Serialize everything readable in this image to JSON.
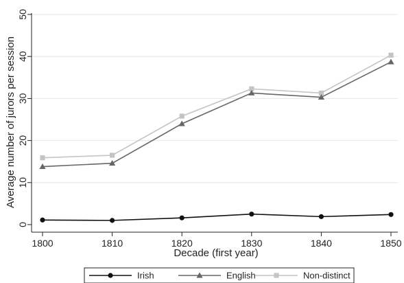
{
  "chart_data": {
    "type": "line",
    "xlabel": "Decade (first year)",
    "ylabel": "Average number of jurors per session",
    "x": [
      1800,
      1810,
      1820,
      1830,
      1840,
      1850
    ],
    "xlim": [
      1800,
      1850
    ],
    "ylim": [
      0,
      50
    ],
    "xticks": [
      "1800",
      "1810",
      "1820",
      "1830",
      "1840",
      "1850"
    ],
    "yticks": [
      "0",
      "10",
      "20",
      "30",
      "40",
      "50"
    ],
    "grid": "horizontal",
    "legend_position": "bottom",
    "series": [
      {
        "name": "Irish",
        "color": "#111111",
        "marker": "circle",
        "values": [
          1.1,
          1.0,
          1.6,
          2.5,
          1.9,
          2.4
        ]
      },
      {
        "name": "English",
        "color": "#666666",
        "marker": "triangle",
        "values": [
          13.8,
          14.6,
          24.0,
          31.3,
          30.3,
          38.7
        ]
      },
      {
        "name": "Non-distinct",
        "color": "#c4c4c4",
        "marker": "square",
        "values": [
          15.9,
          16.5,
          25.8,
          32.3,
          31.3,
          40.3
        ]
      }
    ]
  }
}
